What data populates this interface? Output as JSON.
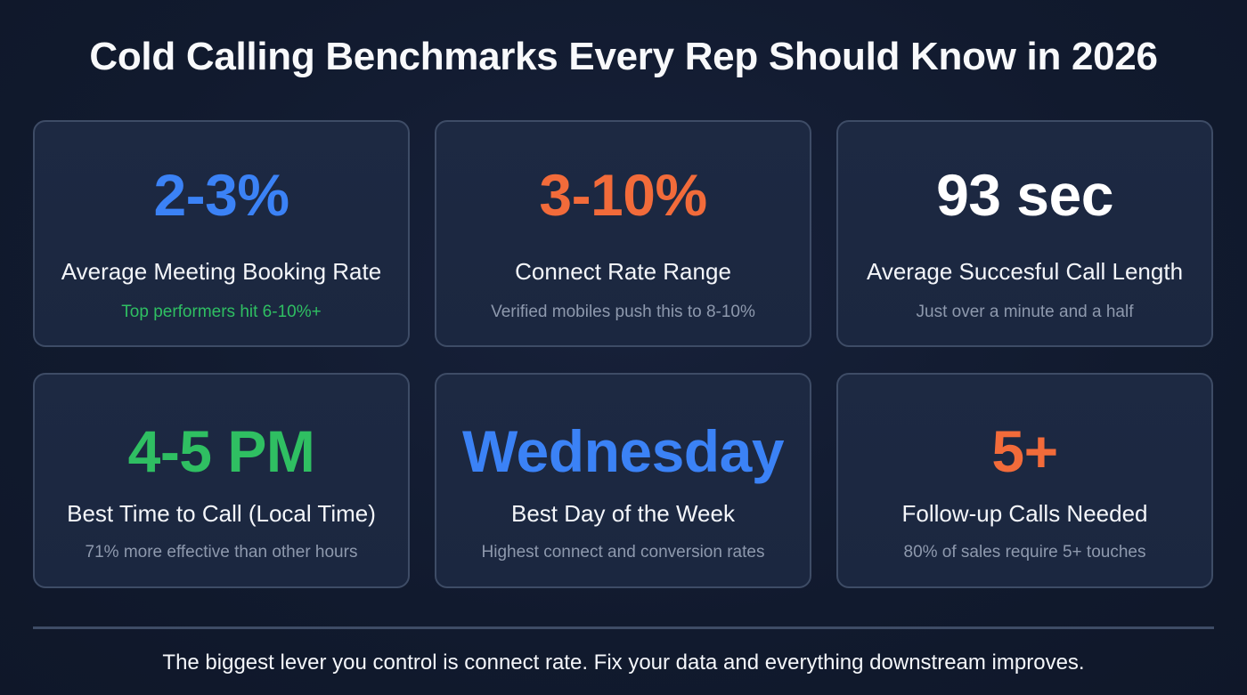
{
  "header": {
    "title": "Cold Calling Benchmarks Every Rep Should Know in 2026"
  },
  "colors": {
    "background": "#111a2e",
    "card_background": "#1c2841",
    "card_border": "#3e4c66",
    "blue": "#3b82f6",
    "orange": "#f26b3a",
    "green": "#2fbf62",
    "white": "#ffffff",
    "muted": "#8e99ad"
  },
  "cards": [
    {
      "value": "2-3%",
      "value_color": "#3b82f6",
      "label": "Average Meeting Booking Rate",
      "sub": "Top performers hit 6-10%+",
      "sub_color": "#2fbf62"
    },
    {
      "value": "3-10%",
      "value_color": "#f26b3a",
      "label": "Connect Rate Range",
      "sub": "Verified mobiles push this to 8-10%",
      "sub_color": "#8e99ad"
    },
    {
      "value": "93 sec",
      "value_color": "#ffffff",
      "label": "Average Succesful Call Length",
      "sub": "Just over a minute and a half",
      "sub_color": "#8e99ad"
    },
    {
      "value": "4-5 PM",
      "value_color": "#2fbf62",
      "label": "Best Time to Call (Local Time)",
      "sub": "71% more effective than other hours",
      "sub_color": "#8e99ad"
    },
    {
      "value": "Wednesday",
      "value_color": "#3b82f6",
      "label": "Best Day of the Week",
      "sub": "Highest connect and conversion rates",
      "sub_color": "#8e99ad"
    },
    {
      "value": "5+",
      "value_color": "#f26b3a",
      "label": "Follow-up Calls Needed",
      "sub": "80% of sales require 5+ touches",
      "sub_color": "#8e99ad"
    }
  ],
  "footer": {
    "text": "The biggest lever you control is connect rate. Fix your data and everything downstream improves."
  }
}
